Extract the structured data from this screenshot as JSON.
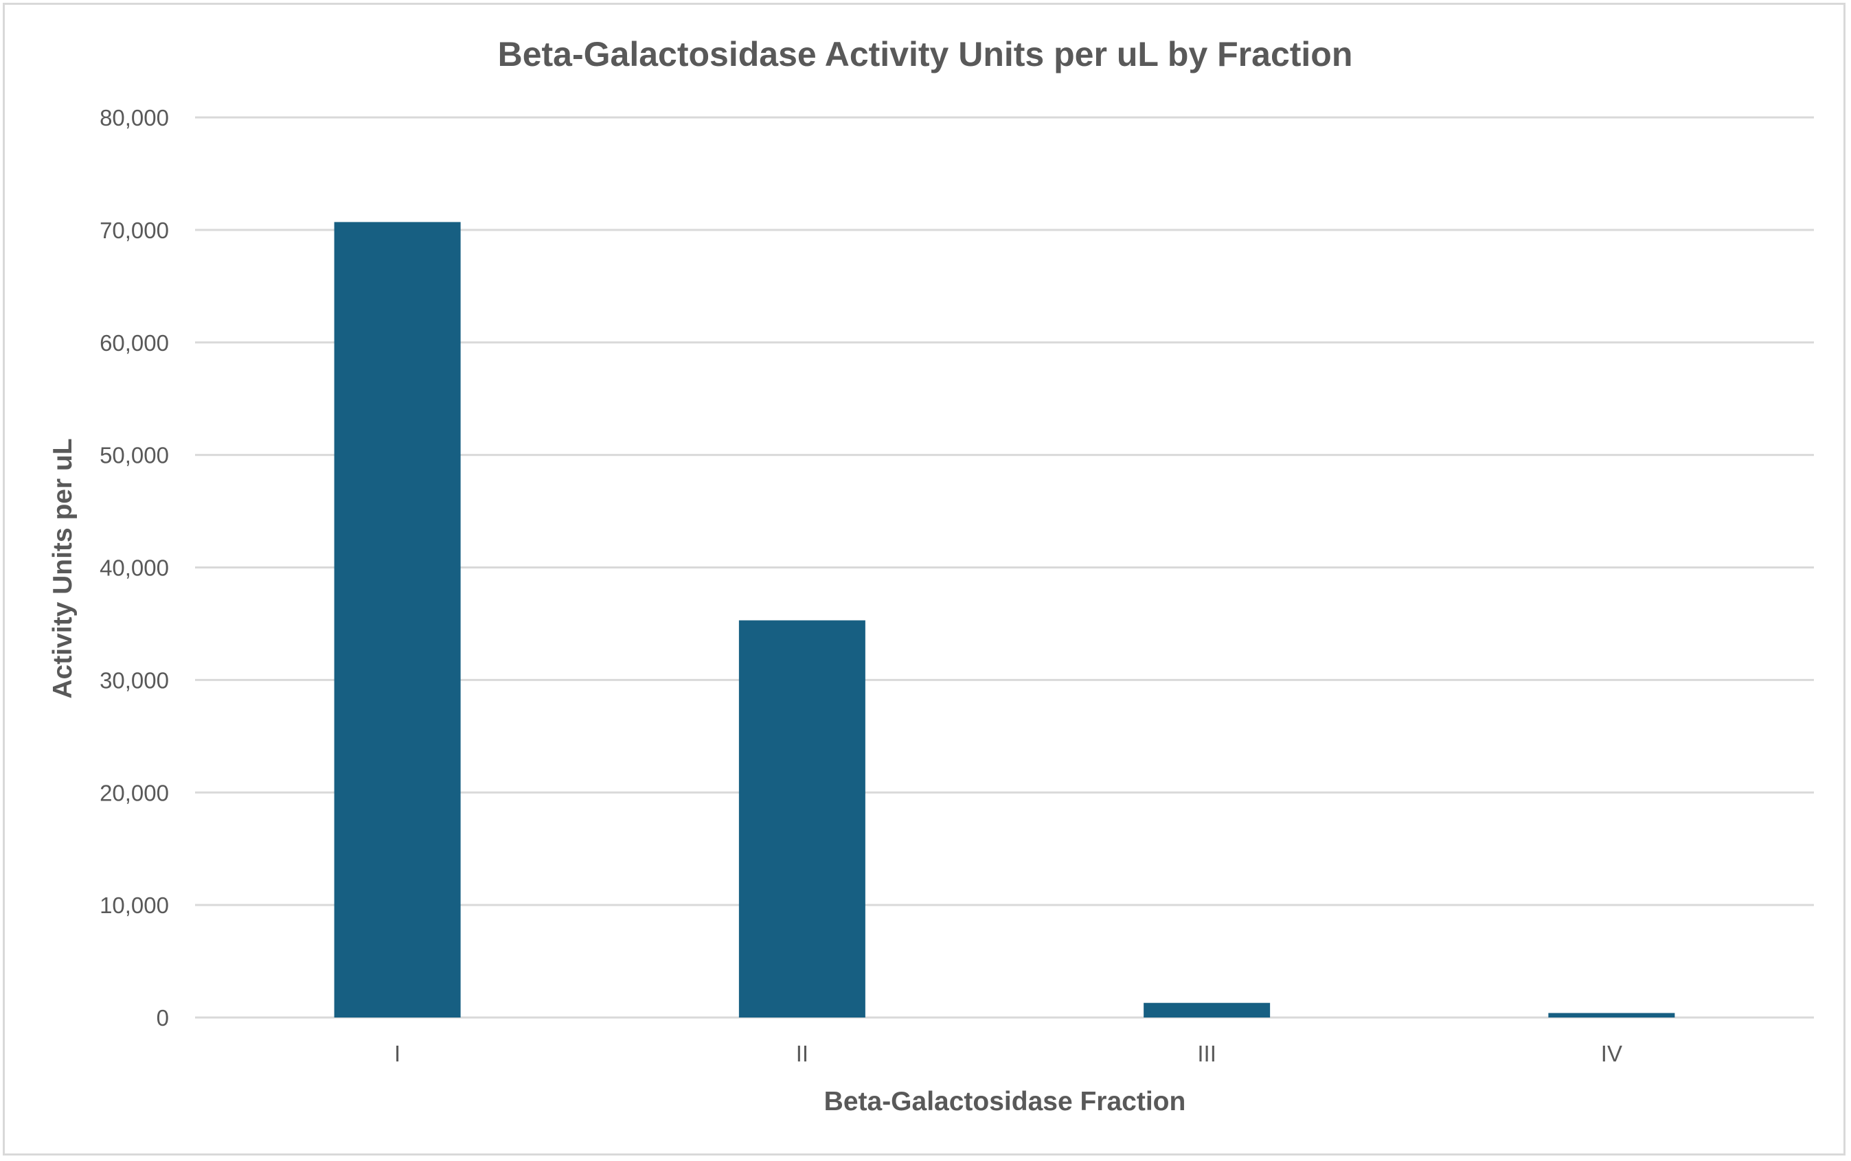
{
  "chart_data": {
    "type": "bar",
    "title": "Beta-Galactosidase Activity Units per uL by Fraction",
    "xlabel": "Beta-Galactosidase Fraction",
    "ylabel": "Activity Units per uL",
    "categories": [
      "I",
      "II",
      "III",
      "IV"
    ],
    "values": [
      70700,
      35300,
      1300,
      400
    ],
    "ylim": [
      0,
      80000
    ],
    "yticks": [
      0,
      10000,
      20000,
      30000,
      40000,
      50000,
      60000,
      70000,
      80000
    ],
    "ytick_labels": [
      "0",
      "10,000",
      "20,000",
      "30,000",
      "40,000",
      "50,000",
      "60,000",
      "70,000",
      "80,000"
    ],
    "grid": true,
    "legend": "none",
    "bar_color": "#175f82",
    "grid_color": "#d9d9d9"
  }
}
